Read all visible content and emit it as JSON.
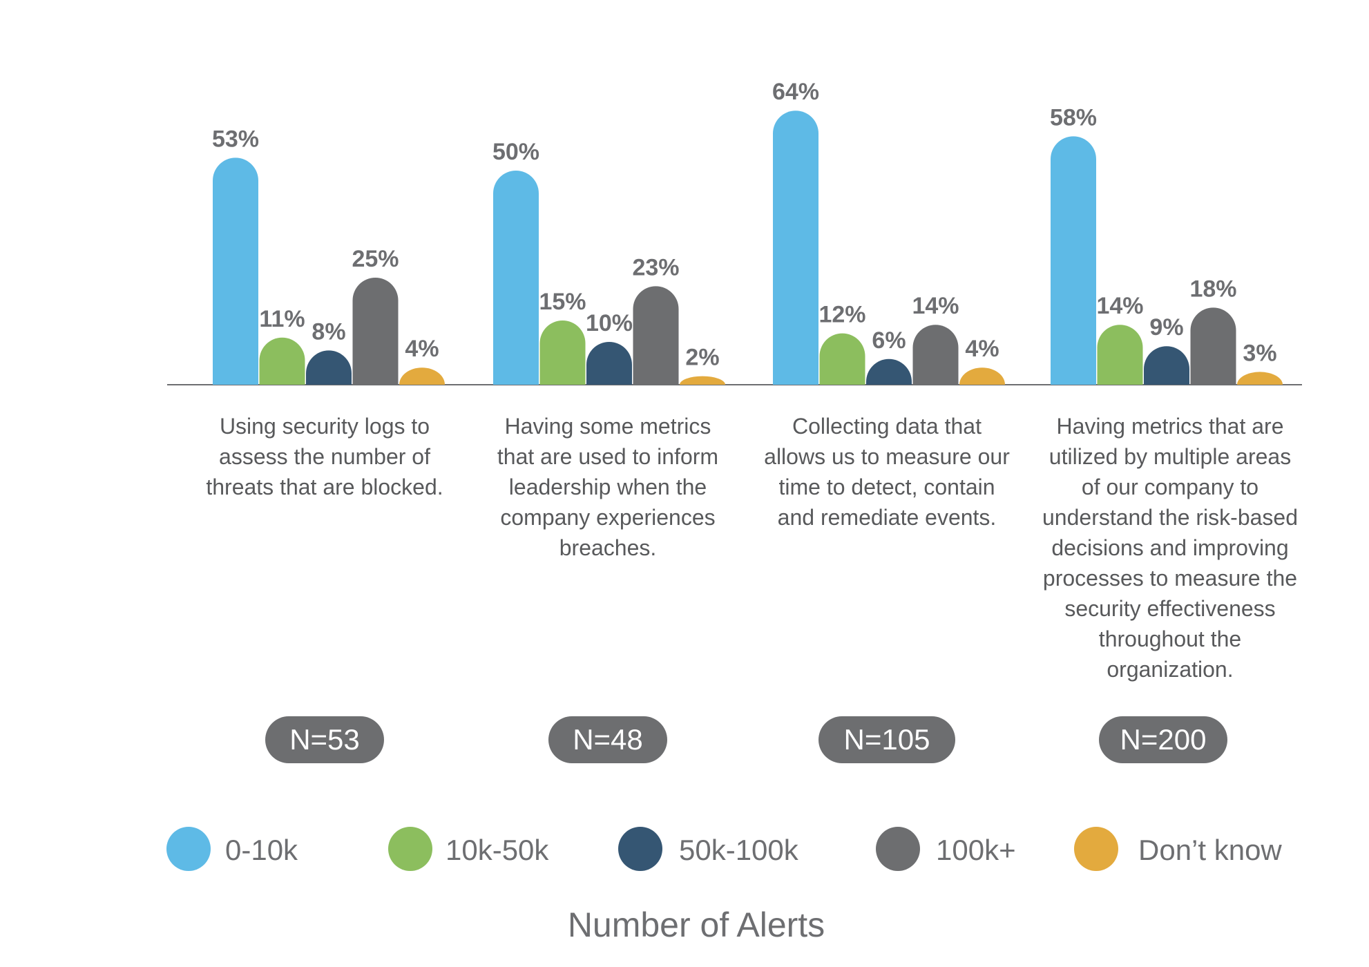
{
  "chart_data": {
    "type": "bar",
    "categories": [
      {
        "label_lines": [
          "Using security logs to",
          "assess the number of",
          "threats that are blocked."
        ],
        "n_label": "N=53"
      },
      {
        "label_lines": [
          "Having some metrics",
          "that are used to inform",
          "leadership when the",
          "company experiences",
          "breaches."
        ],
        "n_label": "N=48"
      },
      {
        "label_lines": [
          "Collecting data that",
          "allows us to measure our",
          "time to detect, contain",
          "and remediate events."
        ],
        "n_label": "N=105"
      },
      {
        "label_lines": [
          "Having metrics that are",
          "utilized by multiple areas",
          "of our company to",
          "understand the risk-based",
          "decisions and improving",
          "processes to measure the",
          "security effectiveness",
          "throughout the",
          "organization."
        ],
        "n_label": "N=200"
      }
    ],
    "series": [
      {
        "name": "0-10k",
        "color": "#5ebae6",
        "values": [
          53,
          50,
          64,
          58
        ],
        "labels": [
          "53%",
          "50%",
          "64%",
          "58%"
        ]
      },
      {
        "name": "10k-50k",
        "color": "#8cbe5e",
        "values": [
          11,
          15,
          12,
          14
        ],
        "labels": [
          "11%",
          "15%",
          "12%",
          "14%"
        ]
      },
      {
        "name": "50k-100k",
        "color": "#355673",
        "values": [
          8,
          10,
          6,
          9
        ],
        "labels": [
          "8%",
          "10%",
          "6%",
          "9%"
        ]
      },
      {
        "name": "100k+",
        "color": "#6d6e70",
        "values": [
          25,
          23,
          14,
          18
        ],
        "labels": [
          "25%",
          "23%",
          "14%",
          "18%"
        ]
      },
      {
        "name": "Don’t know",
        "color": "#e3aa3e",
        "values": [
          4,
          2,
          4,
          3
        ],
        "labels": [
          "4%",
          "2%",
          "4%",
          "3%"
        ]
      }
    ],
    "xlabel": "Number of Alerts",
    "ylim": [
      0,
      70
    ],
    "legend_position": "bottom",
    "grid": false,
    "n_badge_color": "#6d6e70"
  }
}
